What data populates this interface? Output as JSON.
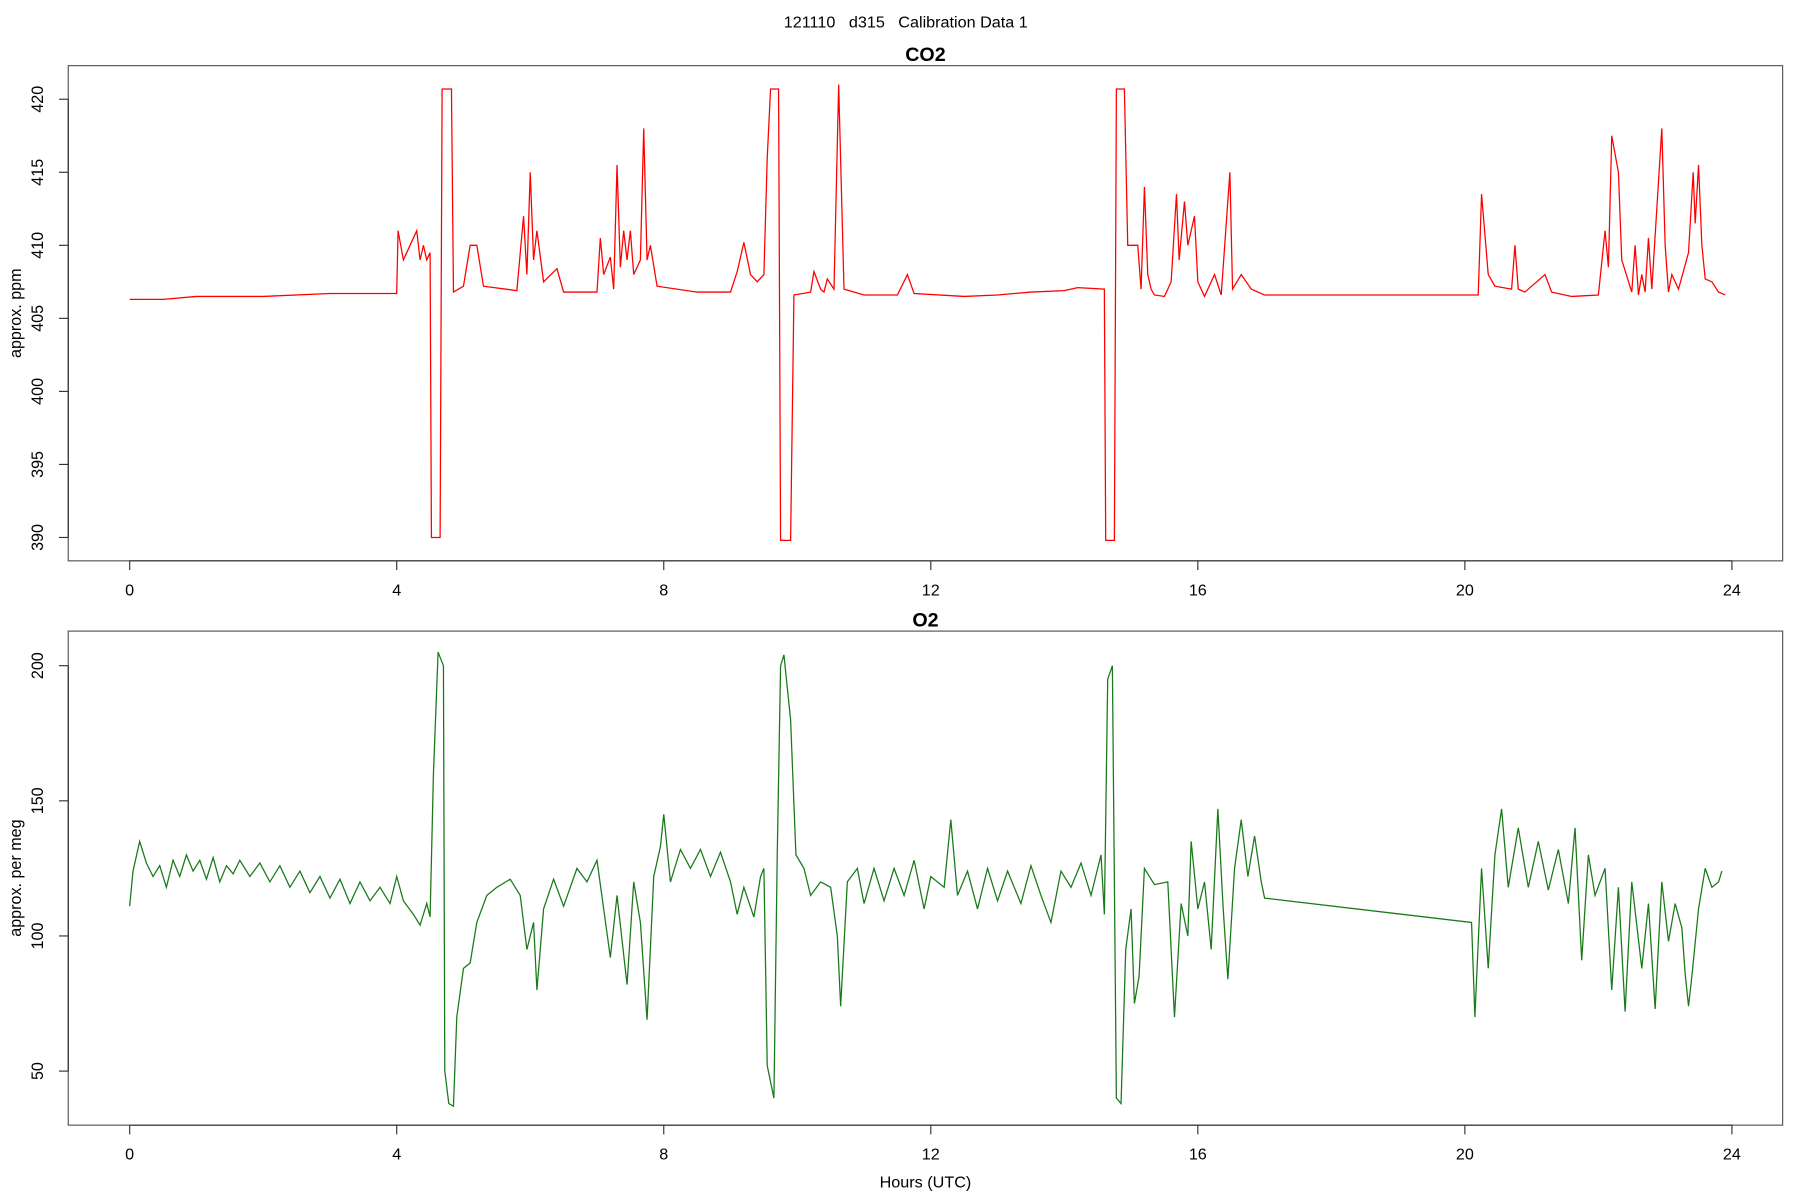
{
  "title": "121110   d315   Calibration Data 1",
  "chart_data": [
    {
      "type": "line",
      "title": "CO2",
      "ylabel": "approx. ppm",
      "color": "#ff0000",
      "xlim": [
        -0.92,
        24.76
      ],
      "xticks": [
        0,
        4,
        8,
        12,
        16,
        20,
        24
      ],
      "ylim": [
        388.4,
        422.3
      ],
      "yticks": [
        390,
        395,
        400,
        405,
        410,
        415,
        420
      ],
      "x": [
        0,
        0.5,
        1,
        2,
        3,
        4,
        4.02,
        4.1,
        4.2,
        4.3,
        4.35,
        4.4,
        4.45,
        4.5,
        4.52,
        4.65,
        4.68,
        4.82,
        4.85,
        5,
        5.1,
        5.2,
        5.3,
        5.8,
        5.9,
        5.95,
        6.0,
        6.05,
        6.1,
        6.2,
        6.4,
        6.5,
        7.0,
        7.05,
        7.1,
        7.2,
        7.25,
        7.3,
        7.35,
        7.4,
        7.45,
        7.5,
        7.55,
        7.65,
        7.7,
        7.75,
        7.8,
        7.9,
        8.5,
        9.0,
        9.1,
        9.2,
        9.3,
        9.4,
        9.5,
        9.55,
        9.6,
        9.72,
        9.75,
        9.9,
        9.95,
        10.2,
        10.25,
        10.35,
        10.4,
        10.45,
        10.55,
        10.62,
        10.7,
        11.0,
        11.5,
        11.65,
        11.75,
        12.5,
        13,
        13.5,
        14,
        14.2,
        14.6,
        14.62,
        14.75,
        14.78,
        14.9,
        14.95,
        15.1,
        15.15,
        15.2,
        15.25,
        15.3,
        15.35,
        15.5,
        15.6,
        15.68,
        15.72,
        15.8,
        15.85,
        15.95,
        16.0,
        16.1,
        16.25,
        16.35,
        16.48,
        16.52,
        16.65,
        16.8,
        17.0,
        20.2,
        20.25,
        20.35,
        20.45,
        20.7,
        20.75,
        20.8,
        20.9,
        21.2,
        21.3,
        21.6,
        22.0,
        22.1,
        22.15,
        22.2,
        22.3,
        22.35,
        22.5,
        22.55,
        22.6,
        22.65,
        22.7,
        22.75,
        22.8,
        22.95,
        23.0,
        23.05,
        23.1,
        23.2,
        23.35,
        23.42,
        23.45,
        23.5,
        23.55,
        23.6,
        23.7,
        23.8,
        23.9
      ],
      "values": [
        406.3,
        406.3,
        406.5,
        406.5,
        406.7,
        406.7,
        411,
        409,
        410,
        411,
        409,
        410,
        409,
        409.5,
        390,
        390,
        420.7,
        420.7,
        406.8,
        407.2,
        410,
        410,
        407.2,
        406.9,
        412,
        408,
        415,
        409,
        411,
        407.5,
        408.4,
        406.8,
        406.8,
        410.5,
        408,
        409.2,
        407,
        415.5,
        408.5,
        411,
        409,
        411,
        408,
        409,
        418,
        409,
        410,
        407.2,
        406.8,
        406.8,
        408.2,
        410.2,
        408,
        407.5,
        408,
        416,
        420.7,
        420.7,
        389.8,
        389.8,
        406.6,
        406.8,
        408.2,
        407,
        406.8,
        407.7,
        407,
        421,
        407,
        406.6,
        406.6,
        408,
        406.7,
        406.5,
        406.6,
        406.8,
        406.9,
        407.1,
        407,
        389.8,
        389.8,
        420.7,
        420.7,
        410,
        410,
        407,
        414,
        408,
        407,
        406.6,
        406.5,
        407.5,
        413.5,
        409,
        413,
        410,
        412,
        407.5,
        406.5,
        408,
        406.6,
        415,
        407,
        408,
        407,
        406.6,
        406.6,
        413.5,
        408,
        407.2,
        407,
        410,
        407,
        406.8,
        408,
        406.8,
        406.5,
        406.6,
        411,
        408.5,
        417.5,
        415,
        409,
        406.8,
        410,
        406.6,
        408,
        406.8,
        410.5,
        407,
        418,
        410,
        406.8,
        408,
        407,
        409.5,
        415,
        411.5,
        415.5,
        410,
        407.7,
        407.5,
        406.8,
        406.6
      ]
    },
    {
      "type": "line",
      "title": "O2",
      "ylabel": "approx. per meg",
      "xlabel": "Hours (UTC)",
      "color": "#1a7a1a",
      "xlim": [
        -0.92,
        24.76
      ],
      "xticks": [
        0,
        4,
        8,
        12,
        16,
        20,
        24
      ],
      "ylim": [
        30.0,
        212.8
      ],
      "yticks": [
        50,
        100,
        150,
        200
      ],
      "x": [
        0,
        0.05,
        0.15,
        0.25,
        0.35,
        0.45,
        0.55,
        0.65,
        0.75,
        0.85,
        0.95,
        1.05,
        1.15,
        1.25,
        1.35,
        1.45,
        1.55,
        1.65,
        1.8,
        1.95,
        2.1,
        2.25,
        2.4,
        2.55,
        2.7,
        2.85,
        3.0,
        3.15,
        3.3,
        3.45,
        3.6,
        3.75,
        3.9,
        4.0,
        4.1,
        4.25,
        4.35,
        4.45,
        4.5,
        4.55,
        4.62,
        4.7,
        4.72,
        4.78,
        4.85,
        4.9,
        5.0,
        5.1,
        5.2,
        5.35,
        5.5,
        5.7,
        5.85,
        5.95,
        6.05,
        6.1,
        6.2,
        6.35,
        6.5,
        6.7,
        6.85,
        7.0,
        7.1,
        7.2,
        7.3,
        7.45,
        7.55,
        7.65,
        7.75,
        7.85,
        7.95,
        8.0,
        8.1,
        8.25,
        8.4,
        8.55,
        8.7,
        8.85,
        9.0,
        9.1,
        9.2,
        9.35,
        9.45,
        9.5,
        9.55,
        9.65,
        9.7,
        9.75,
        9.8,
        9.9,
        9.98,
        10.1,
        10.2,
        10.35,
        10.5,
        10.6,
        10.65,
        10.75,
        10.9,
        11.0,
        11.15,
        11.3,
        11.45,
        11.6,
        11.75,
        11.9,
        12.0,
        12.2,
        12.3,
        12.4,
        12.55,
        12.7,
        12.85,
        13.0,
        13.15,
        13.35,
        13.5,
        13.65,
        13.8,
        13.95,
        14.1,
        14.25,
        14.4,
        14.55,
        14.6,
        14.65,
        14.72,
        14.78,
        14.85,
        14.92,
        15.0,
        15.05,
        15.12,
        15.2,
        15.35,
        15.55,
        15.65,
        15.75,
        15.85,
        15.9,
        16.0,
        16.1,
        16.2,
        16.3,
        16.38,
        16.45,
        16.55,
        16.65,
        16.75,
        16.85,
        16.95,
        17.0,
        20.1,
        20.15,
        20.25,
        20.35,
        20.45,
        20.55,
        20.65,
        20.8,
        20.95,
        21.1,
        21.25,
        21.4,
        21.55,
        21.65,
        21.75,
        21.85,
        21.95,
        22.1,
        22.2,
        22.3,
        22.4,
        22.5,
        22.65,
        22.75,
        22.85,
        22.95,
        23.05,
        23.15,
        23.25,
        23.3,
        23.35,
        23.4,
        23.5,
        23.6,
        23.7,
        23.8,
        23.85
      ],
      "values": [
        111,
        124,
        135,
        127,
        122,
        126,
        118,
        128,
        122,
        130,
        124,
        128,
        121,
        129,
        120,
        126,
        123,
        128,
        122,
        127,
        120,
        126,
        118,
        124,
        116,
        122,
        114,
        121,
        112,
        120,
        113,
        118,
        112,
        122,
        113,
        108,
        104,
        112,
        107,
        160,
        205,
        200,
        50,
        38,
        37,
        70,
        88,
        90,
        105,
        115,
        118,
        121,
        115,
        95,
        105,
        80,
        110,
        121,
        111,
        125,
        120,
        128,
        110,
        92,
        115,
        82,
        120,
        105,
        69,
        122,
        133,
        145,
        120,
        132,
        125,
        132,
        122,
        131,
        120,
        108,
        118,
        107,
        122,
        125,
        52,
        40,
        130,
        200,
        204,
        180,
        130,
        125,
        115,
        120,
        118,
        100,
        74,
        120,
        125,
        112,
        125,
        113,
        125,
        115,
        128,
        110,
        122,
        118,
        143,
        115,
        124,
        110,
        125,
        113,
        124,
        112,
        126,
        115,
        105,
        124,
        118,
        127,
        115,
        130,
        108,
        195,
        200,
        40,
        38,
        95,
        110,
        75,
        85,
        125,
        119,
        120,
        70,
        112,
        100,
        135,
        110,
        120,
        95,
        147,
        110,
        84,
        125,
        143,
        122,
        137,
        120,
        114,
        105,
        70,
        125,
        88,
        130,
        147,
        118,
        140,
        118,
        135,
        117,
        132,
        112,
        140,
        91,
        130,
        115,
        125,
        80,
        118,
        72,
        120,
        88,
        112,
        73,
        120,
        98,
        112,
        103,
        86,
        74,
        85,
        110,
        125,
        118,
        120,
        124
      ]
    }
  ]
}
